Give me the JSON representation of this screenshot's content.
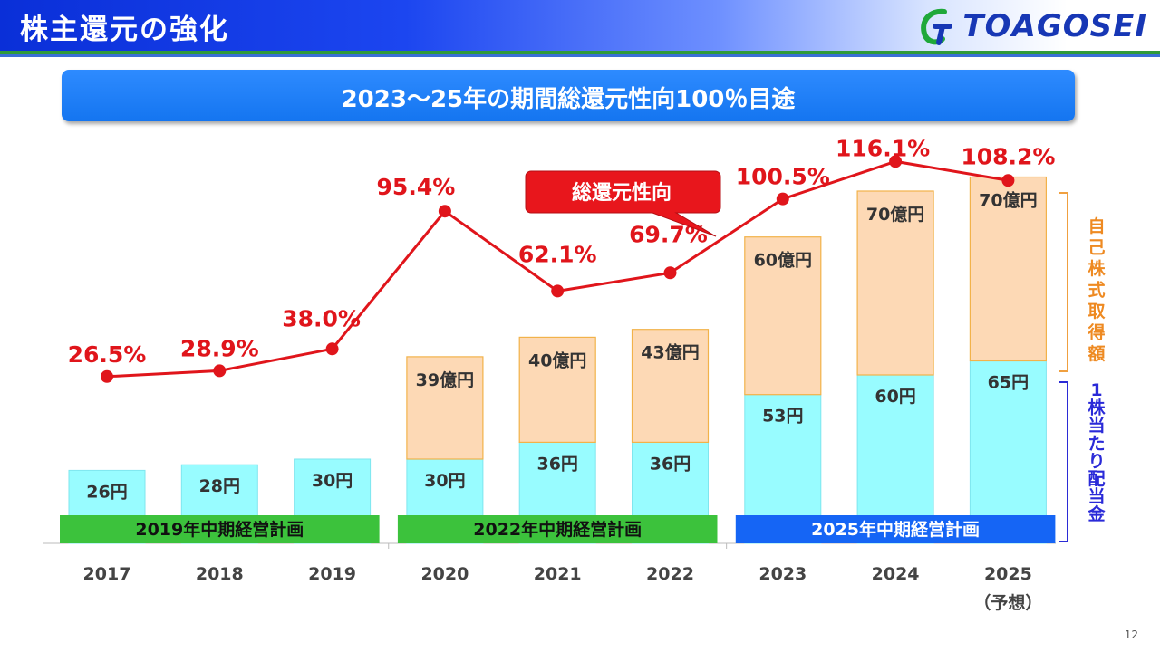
{
  "header": {
    "title": "株主還元の強化",
    "logo_text": "TOAGOSEI"
  },
  "banner": {
    "text": "2023～25年の期間総還元性向100％目途"
  },
  "page_number": "12",
  "colors": {
    "dividend": "#98fcff",
    "buyback": "#fdd9b5",
    "ratio_line": "#e0151b",
    "plan_green": "#3cc23c",
    "plan_blue": "#1565f5"
  },
  "chart_data": {
    "type": "bar",
    "categories": [
      "2017",
      "2018",
      "2019",
      "2020",
      "2021",
      "2022",
      "2023",
      "2024",
      "2025"
    ],
    "category_sublabels": [
      "",
      "",
      "",
      "",
      "",
      "",
      "",
      "",
      "（予想）"
    ],
    "series": [
      {
        "name": "1株当たり配当金",
        "values": [
          26,
          28,
          30,
          30,
          36,
          36,
          53,
          60,
          65
        ],
        "labels": [
          "26円",
          "28円",
          "30円",
          "30円",
          "36円",
          "36円",
          "53円",
          "60円",
          "65円"
        ]
      },
      {
        "name": "自己株式取得額",
        "values": [
          null,
          null,
          null,
          39,
          40,
          43,
          60,
          70,
          70
        ],
        "labels": [
          "",
          "",
          "",
          "39億円",
          "40億円",
          "43億円",
          "60億円",
          "70億円",
          "70億円"
        ]
      },
      {
        "name": "総還元性向",
        "type": "line",
        "values": [
          26.5,
          28.9,
          38.0,
          95.4,
          62.1,
          69.7,
          100.5,
          116.1,
          108.2
        ],
        "labels": [
          "26.5%",
          "28.9%",
          "38.0%",
          "95.4%",
          "62.1%",
          "69.7%",
          "100.5%",
          "116.1%",
          "108.2%"
        ]
      }
    ],
    "callout": "総還元性向",
    "plans": [
      {
        "label": "2019年中期経営計画",
        "from": "2017",
        "to": "2019"
      },
      {
        "label": "2022年中期経営計画",
        "from": "2020",
        "to": "2022"
      },
      {
        "label": "2025年中期経営計画",
        "from": "2023",
        "to": "2025"
      }
    ],
    "side_labels": {
      "buyback": "自己株式取得額",
      "dividend": "1株当たり配当金"
    }
  }
}
